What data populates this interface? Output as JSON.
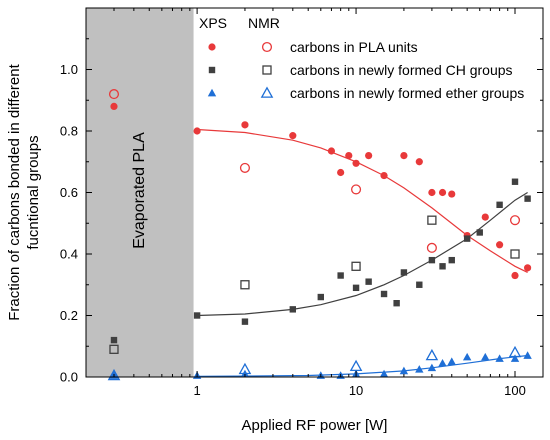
{
  "chart_data": {
    "type": "scatter",
    "xlabel": "Applied RF power [W]",
    "ylabel_lines": [
      "Fraction of carbons bonded in different",
      "fucntional groups"
    ],
    "x_scale": "log",
    "xlim": [
      0.2,
      150
    ],
    "ylim": [
      0,
      1.2
    ],
    "x_ticks": [
      {
        "value": 1,
        "label": "1"
      },
      {
        "value": 10,
        "label": "10"
      },
      {
        "value": 100,
        "label": "100"
      }
    ],
    "y_ticks": [
      {
        "value": 0.0,
        "label": "0.0"
      },
      {
        "value": 0.2,
        "label": "0.2"
      },
      {
        "value": 0.4,
        "label": "0.4"
      },
      {
        "value": 0.6,
        "label": "0.6"
      },
      {
        "value": 0.8,
        "label": "0.8"
      },
      {
        "value": 1.0,
        "label": "1.0"
      }
    ],
    "shaded_region": {
      "x_from": 0.2,
      "x_to": 0.95,
      "label": "Evaporated PLA",
      "color": "#c0c0c0"
    },
    "legend": {
      "placement": "top-right",
      "headers": [
        "XPS",
        "NMR"
      ],
      "rows": [
        {
          "series": "pla",
          "label": "carbons in PLA units"
        },
        {
          "series": "ch",
          "label": "carbons in newly formed CH groups"
        },
        {
          "series": "ether",
          "label": "carbons in newly formed ether groups"
        }
      ]
    },
    "series": [
      {
        "key": "pla",
        "method": "XPS",
        "marker": "circle",
        "filled": true,
        "color": "#e8393a",
        "points": [
          [
            0.3,
            0.88
          ],
          [
            1,
            0.8
          ],
          [
            2,
            0.82
          ],
          [
            4,
            0.785
          ],
          [
            7,
            0.735
          ],
          [
            8,
            0.665
          ],
          [
            9,
            0.72
          ],
          [
            10,
            0.695
          ],
          [
            12,
            0.72
          ],
          [
            15,
            0.655
          ],
          [
            20,
            0.72
          ],
          [
            25,
            0.7
          ],
          [
            30,
            0.6
          ],
          [
            35,
            0.6
          ],
          [
            40,
            0.595
          ],
          [
            50,
            0.46
          ],
          [
            65,
            0.52
          ],
          [
            80,
            0.43
          ],
          [
            100,
            0.33
          ],
          [
            120,
            0.355
          ]
        ]
      },
      {
        "key": "pla",
        "method": "NMR",
        "marker": "circle",
        "filled": false,
        "color": "#e8393a",
        "points": [
          [
            0.3,
            0.92
          ],
          [
            2,
            0.68
          ],
          [
            10,
            0.61
          ],
          [
            30,
            0.42
          ],
          [
            100,
            0.51
          ]
        ]
      },
      {
        "key": "ch",
        "method": "XPS",
        "marker": "square",
        "filled": true,
        "color": "#404040",
        "points": [
          [
            0.3,
            0.12
          ],
          [
            1,
            0.2
          ],
          [
            2,
            0.18
          ],
          [
            4,
            0.22
          ],
          [
            6,
            0.26
          ],
          [
            8,
            0.33
          ],
          [
            10,
            0.29
          ],
          [
            12,
            0.31
          ],
          [
            15,
            0.27
          ],
          [
            18,
            0.24
          ],
          [
            20,
            0.34
          ],
          [
            25,
            0.3
          ],
          [
            30,
            0.38
          ],
          [
            35,
            0.36
          ],
          [
            40,
            0.38
          ],
          [
            50,
            0.45
          ],
          [
            60,
            0.47
          ],
          [
            80,
            0.56
          ],
          [
            100,
            0.635
          ],
          [
            120,
            0.58
          ]
        ]
      },
      {
        "key": "ch",
        "method": "NMR",
        "marker": "square",
        "filled": false,
        "color": "#404040",
        "points": [
          [
            0.3,
            0.09
          ],
          [
            2,
            0.3
          ],
          [
            10,
            0.36
          ],
          [
            30,
            0.51
          ],
          [
            100,
            0.4
          ]
        ]
      },
      {
        "key": "ether",
        "method": "XPS",
        "marker": "triangle",
        "filled": true,
        "color": "#1f6fd6",
        "points": [
          [
            0.3,
            0.005
          ],
          [
            1,
            0.005
          ],
          [
            2,
            0.01
          ],
          [
            6,
            0.005
          ],
          [
            8,
            0.005
          ],
          [
            10,
            0.01
          ],
          [
            15,
            0.01
          ],
          [
            20,
            0.02
          ],
          [
            25,
            0.025
          ],
          [
            30,
            0.03
          ],
          [
            35,
            0.045
          ],
          [
            40,
            0.05
          ],
          [
            50,
            0.065
          ],
          [
            65,
            0.065
          ],
          [
            80,
            0.06
          ],
          [
            100,
            0.06
          ],
          [
            120,
            0.07
          ]
        ]
      },
      {
        "key": "ether",
        "method": "NMR",
        "marker": "triangle",
        "filled": false,
        "color": "#1f6fd6",
        "points": [
          [
            0.3,
            0.005
          ],
          [
            2,
            0.025
          ],
          [
            10,
            0.035
          ],
          [
            30,
            0.07
          ],
          [
            100,
            0.08
          ]
        ]
      }
    ],
    "fit_lines": [
      {
        "key": "pla",
        "color": "#e8393a",
        "points": [
          [
            1,
            0.805
          ],
          [
            2,
            0.795
          ],
          [
            4,
            0.77
          ],
          [
            6,
            0.745
          ],
          [
            10,
            0.7
          ],
          [
            15,
            0.655
          ],
          [
            20,
            0.615
          ],
          [
            30,
            0.55
          ],
          [
            50,
            0.46
          ],
          [
            70,
            0.41
          ],
          [
            100,
            0.36
          ],
          [
            120,
            0.34
          ]
        ]
      },
      {
        "key": "ch",
        "color": "#404040",
        "points": [
          [
            1,
            0.2
          ],
          [
            2,
            0.205
          ],
          [
            4,
            0.22
          ],
          [
            6,
            0.235
          ],
          [
            10,
            0.265
          ],
          [
            15,
            0.3
          ],
          [
            20,
            0.33
          ],
          [
            30,
            0.38
          ],
          [
            50,
            0.45
          ],
          [
            70,
            0.51
          ],
          [
            100,
            0.575
          ],
          [
            120,
            0.6
          ]
        ]
      },
      {
        "key": "ether",
        "color": "#1f6fd6",
        "points": [
          [
            1,
            0.002
          ],
          [
            5,
            0.005
          ],
          [
            10,
            0.01
          ],
          [
            20,
            0.02
          ],
          [
            30,
            0.03
          ],
          [
            50,
            0.045
          ],
          [
            80,
            0.06
          ],
          [
            120,
            0.07
          ]
        ]
      }
    ]
  }
}
